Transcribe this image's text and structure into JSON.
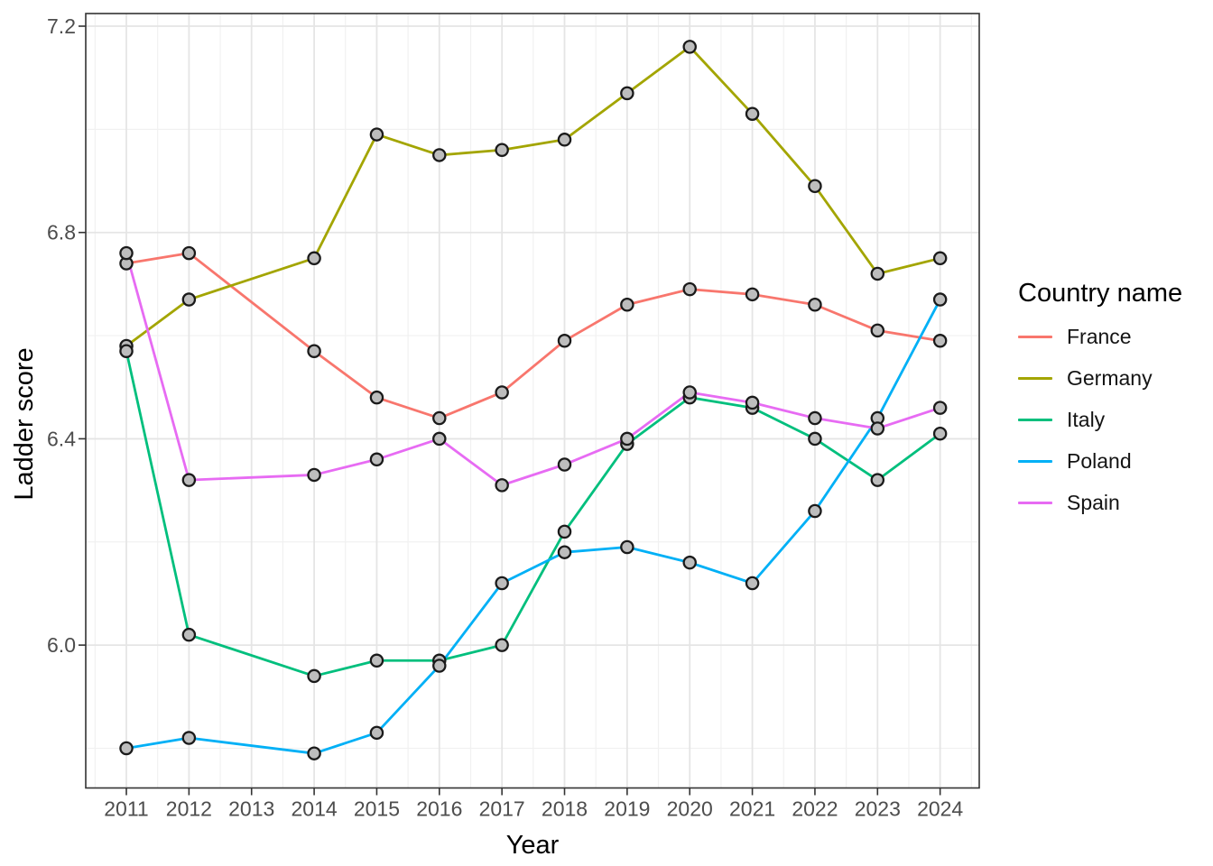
{
  "figure": {
    "x_axis_title": "Year",
    "y_axis_title": "Ladder score"
  },
  "legend": {
    "title": "Country name",
    "entries": [
      {
        "label": "France",
        "color": "#F8766D"
      },
      {
        "label": "Germany",
        "color": "#A3A500"
      },
      {
        "label": "Italy",
        "color": "#00BF7D"
      },
      {
        "label": "Poland",
        "color": "#00B0F6"
      },
      {
        "label": "Spain",
        "color": "#E76BF3"
      }
    ]
  },
  "chart_data": {
    "type": "line",
    "title": "",
    "xlabel": "Year",
    "ylabel": "Ladder score",
    "legend_title": "Country name",
    "legend_position": "right",
    "grid": "major+minor",
    "panel_theme": "white panel, light gray major/minor grid, dark panel border, gray circle markers on every point",
    "x": [
      2011,
      2012,
      2014,
      2015,
      2016,
      2017,
      2018,
      2019,
      2020,
      2021,
      2022,
      2023,
      2024
    ],
    "x_note": "no data point for 2013; lines connect 2012 directly to 2014",
    "x_ticks": [
      2011,
      2012,
      2013,
      2014,
      2015,
      2016,
      2017,
      2018,
      2019,
      2020,
      2021,
      2022,
      2023,
      2024
    ],
    "x_tick_labels": [
      "2011",
      "2012",
      "2013",
      "2014",
      "2015",
      "2016",
      "2017",
      "2018",
      "2019",
      "2020",
      "2021",
      "2022",
      "2023",
      "2024"
    ],
    "y_ticks_major": [
      6.0,
      6.4,
      6.8,
      7.2
    ],
    "y_tick_labels": [
      "6.0",
      "6.4",
      "6.8",
      "7.2"
    ],
    "y_ticks_minor": [
      5.8,
      6.2,
      6.6,
      7.0
    ],
    "xlim": [
      2010.351,
      2024.625
    ],
    "ylim": [
      5.723,
      7.2245
    ],
    "marker": {
      "shape": "circle",
      "fill": "#BDBDBD",
      "stroke": "#1A1A1A"
    },
    "series": [
      {
        "name": "France",
        "color": "#F8766D",
        "values": [
          6.74,
          6.76,
          6.57,
          6.48,
          6.44,
          6.49,
          6.59,
          6.66,
          6.69,
          6.68,
          6.66,
          6.61,
          6.59
        ]
      },
      {
        "name": "Germany",
        "color": "#A3A500",
        "values": [
          6.58,
          6.67,
          6.75,
          6.99,
          6.95,
          6.96,
          6.98,
          7.07,
          7.16,
          7.03,
          6.89,
          6.72,
          6.75
        ]
      },
      {
        "name": "Italy",
        "color": "#00BF7D",
        "values": [
          6.57,
          6.02,
          5.94,
          5.97,
          5.97,
          6.0,
          6.22,
          6.39,
          6.48,
          6.46,
          6.4,
          6.32,
          6.41
        ]
      },
      {
        "name": "Poland",
        "color": "#00B0F6",
        "values": [
          5.8,
          5.82,
          5.79,
          5.83,
          5.96,
          6.12,
          6.18,
          6.19,
          6.16,
          6.12,
          6.26,
          6.44,
          6.67
        ]
      },
      {
        "name": "Spain",
        "color": "#E76BF3",
        "values": [
          6.76,
          6.32,
          6.33,
          6.36,
          6.4,
          6.31,
          6.35,
          6.4,
          6.49,
          6.47,
          6.44,
          6.42,
          6.46
        ]
      }
    ]
  }
}
